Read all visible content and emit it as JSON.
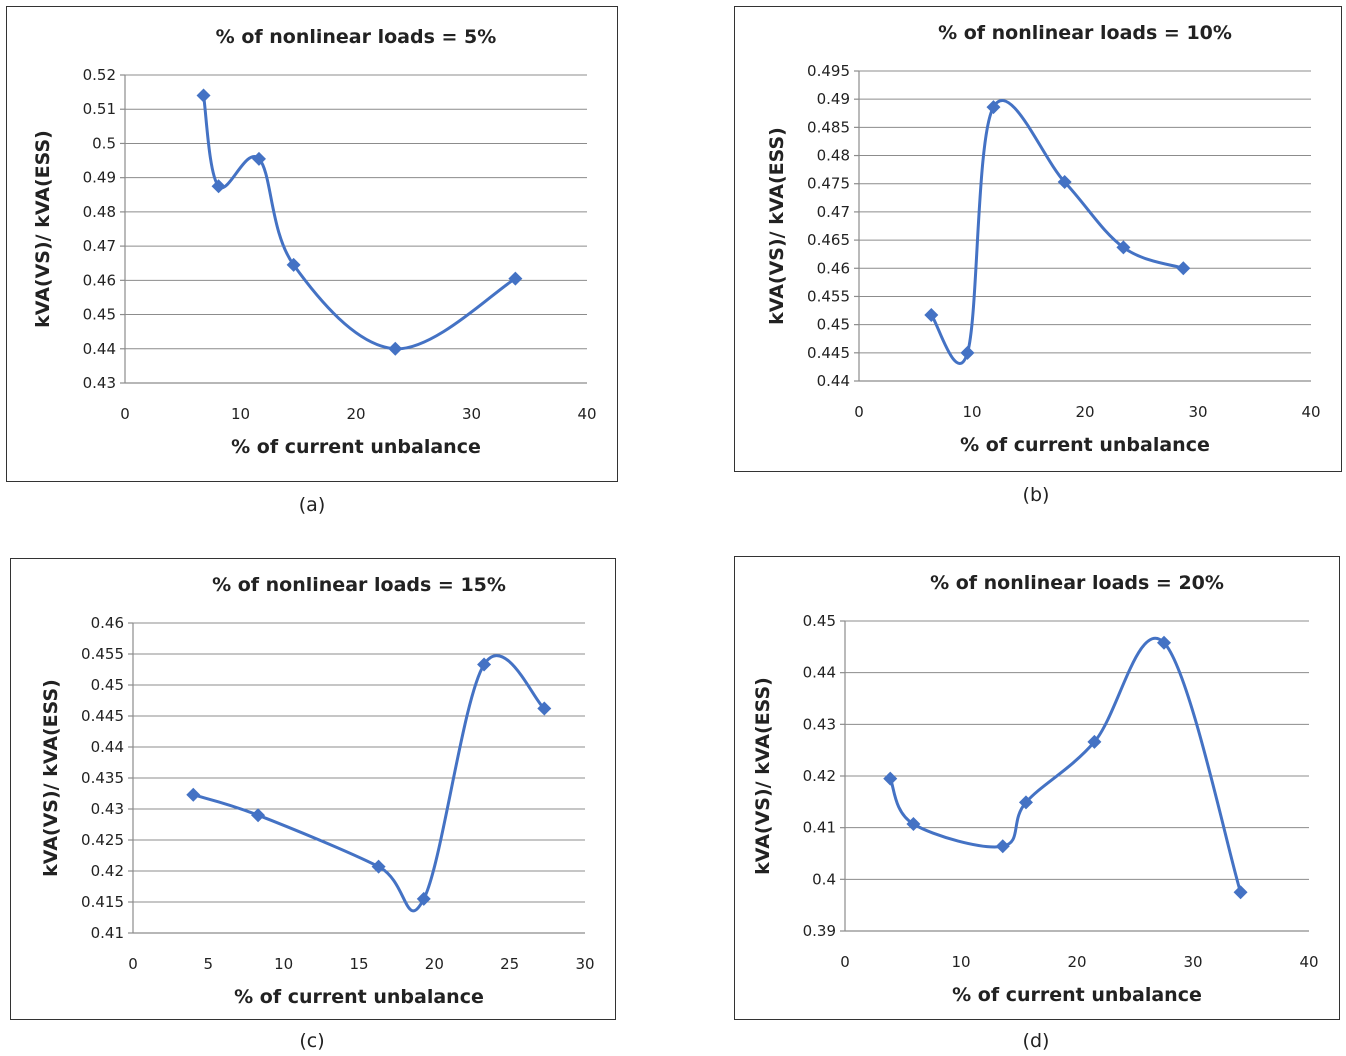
{
  "colors": {
    "series": "#4472c4"
  },
  "marker": "diamond",
  "captions": [
    "(a)",
    "(b)",
    "(c)",
    "(d)"
  ],
  "chart_data": [
    {
      "type": "line",
      "title": "% of nonlinear loads = 5%",
      "xlabel": "% of current unbalance",
      "ylabel": "kVA(VS)/ kVA(ESS)",
      "xlim": [
        0,
        40
      ],
      "xticks": [
        "0",
        "10",
        "20",
        "30",
        "40"
      ],
      "ylim": [
        0.43,
        0.52
      ],
      "yticks": [
        "0.43",
        "0.44",
        "0.45",
        "0.46",
        "0.47",
        "0.48",
        "0.49",
        "0.5",
        "0.51",
        "0.52"
      ],
      "grid": true,
      "smooth": true,
      "x": [
        6.8,
        8.1,
        11.6,
        14.6,
        23.4,
        33.8
      ],
      "y": [
        0.514,
        0.4875,
        0.4955,
        0.4645,
        0.44,
        0.4605
      ]
    },
    {
      "type": "line",
      "title": "% of nonlinear loads = 10%",
      "xlabel": "% of current unbalance",
      "ylabel": "kVA(VS)/ kVA(ESS)",
      "xlim": [
        0,
        40
      ],
      "xticks": [
        "0",
        "10",
        "20",
        "30",
        "40"
      ],
      "ylim": [
        0.44,
        0.495
      ],
      "yticks": [
        "0.44",
        "0.445",
        "0.45",
        "0.455",
        "0.46",
        "0.465",
        "0.47",
        "0.475",
        "0.48",
        "0.485",
        "0.49",
        "0.495"
      ],
      "grid": true,
      "smooth": true,
      "x": [
        6.4,
        9.6,
        11.9,
        18.2,
        23.4,
        28.7
      ],
      "y": [
        0.4517,
        0.445,
        0.4886,
        0.4753,
        0.4637,
        0.46
      ]
    },
    {
      "type": "line",
      "title": "% of nonlinear loads = 15%",
      "xlabel": "% of current unbalance",
      "ylabel": "kVA(VS)/ kVA(ESS)",
      "xlim": [
        0,
        30
      ],
      "xticks": [
        "0",
        "5",
        "10",
        "15",
        "20",
        "25",
        "30"
      ],
      "ylim": [
        0.41,
        0.46
      ],
      "yticks": [
        "0.41",
        "0.415",
        "0.42",
        "0.425",
        "0.43",
        "0.435",
        "0.44",
        "0.445",
        "0.45",
        "0.455",
        "0.46"
      ],
      "grid": true,
      "smooth": true,
      "x": [
        4.0,
        8.3,
        16.3,
        19.3,
        23.3,
        27.3
      ],
      "y": [
        0.4323,
        0.429,
        0.4207,
        0.4155,
        0.4533,
        0.4462
      ]
    },
    {
      "type": "line",
      "title": "% of nonlinear loads = 20%",
      "xlabel": "% of current unbalance",
      "ylabel": "kVA(VS)/ kVA(ESS)",
      "xlim": [
        0,
        40
      ],
      "xticks": [
        "0",
        "10",
        "20",
        "30",
        "40"
      ],
      "ylim": [
        0.39,
        0.45
      ],
      "yticks": [
        "0.39",
        "0.4",
        "0.41",
        "0.42",
        "0.43",
        "0.44",
        "0.45"
      ],
      "grid": true,
      "smooth": true,
      "x": [
        3.9,
        5.9,
        13.6,
        15.6,
        21.5,
        27.5,
        34.1
      ],
      "y": [
        0.4195,
        0.4107,
        0.4064,
        0.4149,
        0.4266,
        0.4458,
        0.3975
      ]
    }
  ]
}
